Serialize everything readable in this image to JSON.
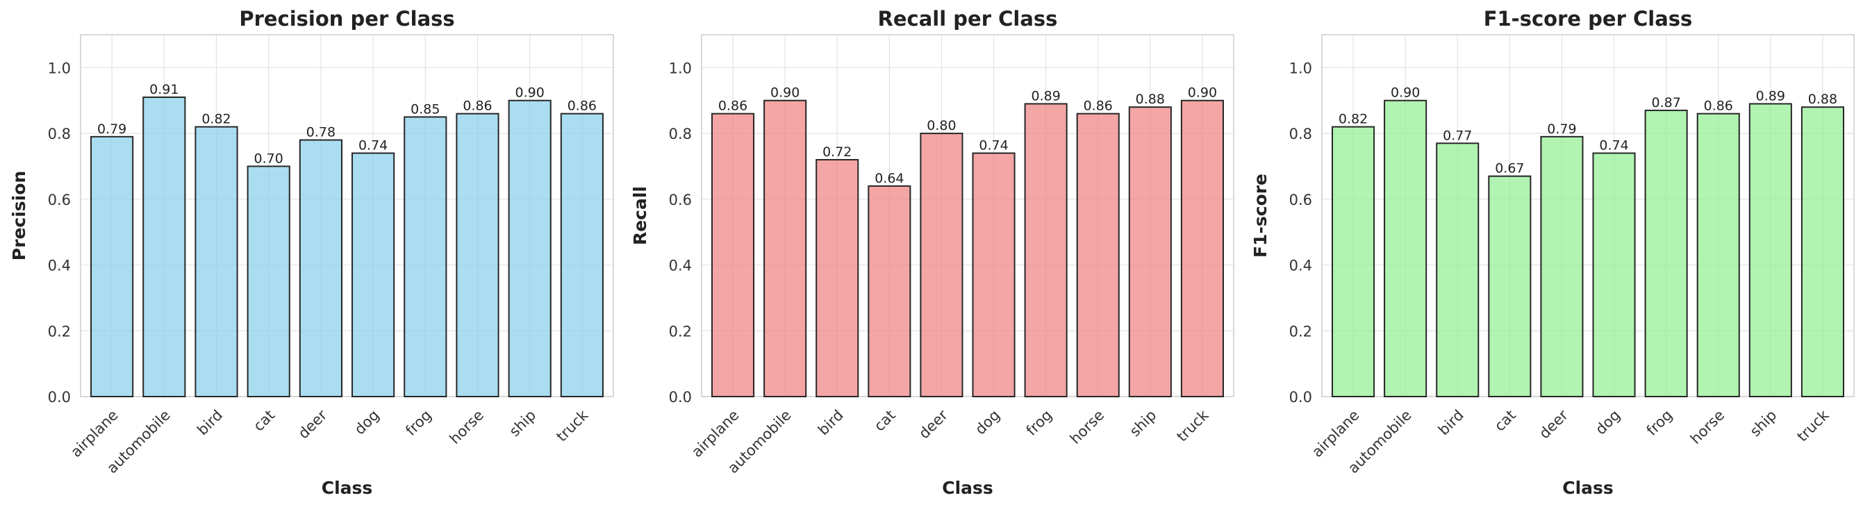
{
  "chart_data": [
    {
      "type": "bar",
      "title": "Precision per Class",
      "xlabel": "Class",
      "ylabel": "Precision",
      "categories": [
        "airplane",
        "automobile",
        "bird",
        "cat",
        "deer",
        "dog",
        "frog",
        "horse",
        "ship",
        "truck"
      ],
      "values": [
        0.79,
        0.91,
        0.82,
        0.7,
        0.78,
        0.74,
        0.85,
        0.86,
        0.9,
        0.86
      ],
      "value_labels": [
        "0.79",
        "0.91",
        "0.82",
        "0.70",
        "0.78",
        "0.74",
        "0.85",
        "0.86",
        "0.90",
        "0.86"
      ],
      "ylim": [
        0,
        1.1
      ],
      "yticks": [
        "0.0",
        "0.2",
        "0.4",
        "0.6",
        "0.8",
        "1.0"
      ],
      "color": "#87CEEB",
      "grid": true
    },
    {
      "type": "bar",
      "title": "Recall per Class",
      "xlabel": "Class",
      "ylabel": "Recall",
      "categories": [
        "airplane",
        "automobile",
        "bird",
        "cat",
        "deer",
        "dog",
        "frog",
        "horse",
        "ship",
        "truck"
      ],
      "values": [
        0.86,
        0.9,
        0.72,
        0.64,
        0.8,
        0.74,
        0.89,
        0.86,
        0.88,
        0.9
      ],
      "value_labels": [
        "0.86",
        "0.90",
        "0.72",
        "0.64",
        "0.80",
        "0.74",
        "0.89",
        "0.86",
        "0.88",
        "0.90"
      ],
      "ylim": [
        0,
        1.1
      ],
      "yticks": [
        "0.0",
        "0.2",
        "0.4",
        "0.6",
        "0.8",
        "1.0"
      ],
      "color": "#F08080",
      "grid": true
    },
    {
      "type": "bar",
      "title": "F1-score per Class",
      "xlabel": "Class",
      "ylabel": "F1-score",
      "categories": [
        "airplane",
        "automobile",
        "bird",
        "cat",
        "deer",
        "dog",
        "frog",
        "horse",
        "ship",
        "truck"
      ],
      "values": [
        0.82,
        0.9,
        0.77,
        0.67,
        0.79,
        0.74,
        0.87,
        0.86,
        0.89,
        0.88
      ],
      "value_labels": [
        "0.82",
        "0.90",
        "0.77",
        "0.67",
        "0.79",
        "0.74",
        "0.87",
        "0.86",
        "0.89",
        "0.88"
      ],
      "ylim": [
        0,
        1.1
      ],
      "yticks": [
        "0.0",
        "0.2",
        "0.4",
        "0.6",
        "0.8",
        "1.0"
      ],
      "color": "#90EE90",
      "grid": true
    }
  ]
}
